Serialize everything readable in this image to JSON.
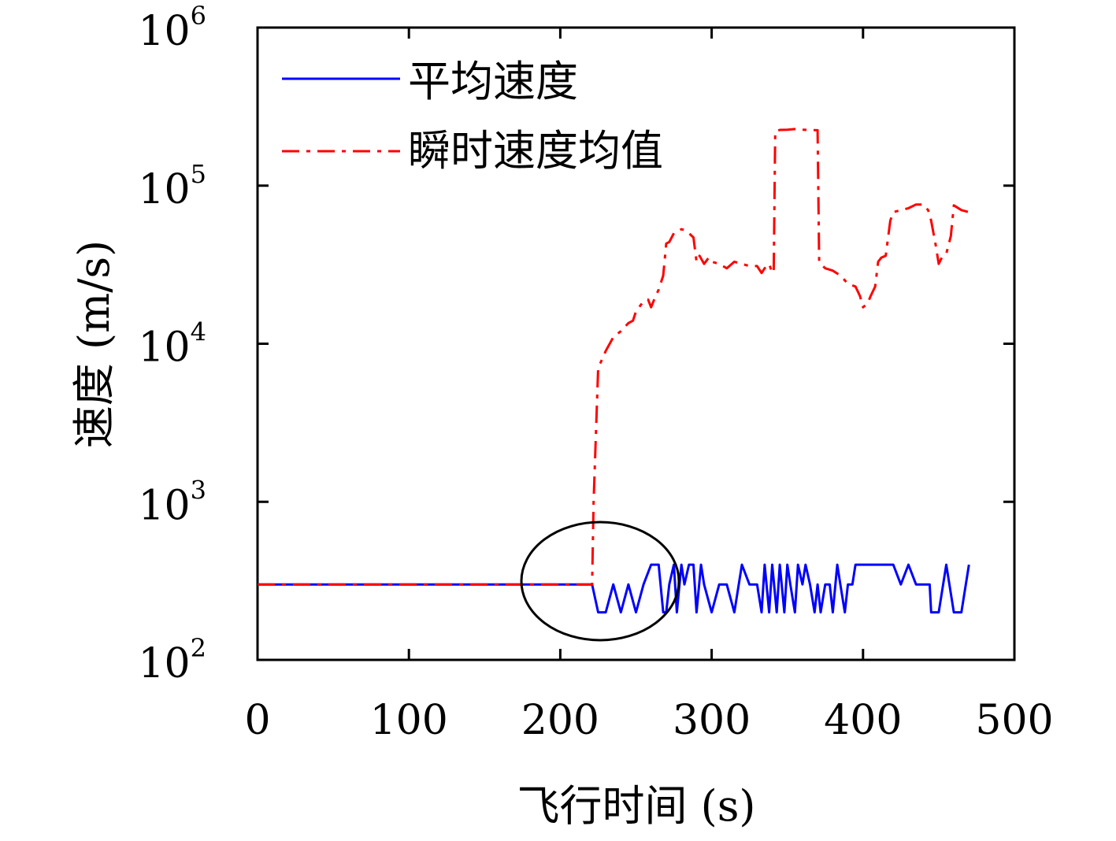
{
  "chart_data": {
    "type": "line",
    "title": "",
    "xlabel": "飞行时间 (s)",
    "ylabel": "速度 (m/s)",
    "xlim": [
      0,
      500
    ],
    "ylim": [
      100,
      1000000
    ],
    "yscale": "log",
    "grid": false,
    "legend_position": "top-left",
    "x_ticks": [
      "0",
      "100",
      "200",
      "300",
      "400",
      "500"
    ],
    "y_ticks": [
      {
        "base": "10",
        "exp": "2",
        "value": 100
      },
      {
        "base": "10",
        "exp": "3",
        "value": 1000
      },
      {
        "base": "10",
        "exp": "4",
        "value": 10000
      },
      {
        "base": "10",
        "exp": "5",
        "value": 100000
      },
      {
        "base": "10",
        "exp": "6",
        "value": 1000000
      }
    ],
    "series": [
      {
        "name": "平均速度",
        "color": "#0000ff",
        "style": "solid",
        "x": [
          0,
          220,
          221,
          225,
          230,
          235,
          240,
          245,
          250,
          255,
          260,
          265,
          268,
          270,
          272,
          275,
          277,
          280,
          282,
          285,
          288,
          290,
          293,
          295,
          300,
          305,
          310,
          315,
          320,
          325,
          330,
          333,
          335,
          338,
          340,
          343,
          345,
          348,
          350,
          352,
          355,
          357,
          360,
          362,
          365,
          368,
          370,
          372,
          375,
          378,
          380,
          383,
          385,
          388,
          390,
          393,
          395,
          400,
          410,
          420,
          425,
          430,
          435,
          440,
          444,
          445,
          447,
          450,
          455,
          460,
          465,
          470
        ],
        "y": [
          300,
          300,
          300,
          200,
          200,
          300,
          200,
          300,
          200,
          300,
          400,
          400,
          200,
          200,
          300,
          400,
          200,
          400,
          300,
          400,
          400,
          200,
          400,
          300,
          200,
          300,
          300,
          200,
          400,
          300,
          300,
          200,
          400,
          200,
          400,
          200,
          400,
          200,
          400,
          300,
          200,
          400,
          300,
          400,
          300,
          200,
          300,
          200,
          300,
          300,
          200,
          400,
          300,
          200,
          300,
          300,
          400,
          400,
          400,
          400,
          300,
          400,
          300,
          300,
          300,
          200,
          200,
          200,
          400,
          200,
          200,
          400
        ],
        "note_visible": ""
      },
      {
        "name": "瞬时速度均值",
        "color": "#ff0000",
        "style": "dashdot",
        "x": [
          0,
          220,
          221,
          222,
          225,
          230,
          235,
          240,
          245,
          248,
          250,
          252,
          255,
          258,
          260,
          262,
          265,
          268,
          270,
          272,
          275,
          280,
          283,
          285,
          288,
          290,
          292,
          295,
          298,
          300,
          305,
          310,
          315,
          320,
          325,
          330,
          333,
          335,
          338,
          340,
          341,
          342,
          345,
          350,
          355,
          360,
          365,
          370,
          371,
          372,
          375,
          380,
          385,
          390,
          395,
          398,
          400,
          403,
          405,
          408,
          410,
          412,
          415,
          418,
          420,
          425,
          430,
          435,
          440,
          443,
          444,
          445,
          448,
          450,
          452,
          455,
          458,
          460,
          465,
          470
        ],
        "y": [
          300,
          300,
          300,
          1000,
          7000,
          9000,
          11000,
          12000,
          13500,
          14000,
          16000,
          17000,
          18500,
          19000,
          17000,
          19000,
          22000,
          27000,
          43000,
          44000,
          50000,
          53000,
          52000,
          50000,
          47000,
          33000,
          36000,
          32000,
          35000,
          33000,
          32000,
          30000,
          33000,
          32000,
          31000,
          31000,
          28000,
          30000,
          32000,
          28000,
          29000,
          220000,
          225000,
          226000,
          228000,
          226000,
          225000,
          224000,
          33000,
          32000,
          30000,
          29000,
          27000,
          24000,
          23000,
          20000,
          17000,
          18000,
          20000,
          23000,
          33000,
          35000,
          36000,
          60000,
          68000,
          70000,
          72000,
          76000,
          76000,
          70000,
          66000,
          60000,
          42000,
          32000,
          35000,
          37000,
          48000,
          75000,
          70000,
          68000
        ]
      }
    ]
  }
}
